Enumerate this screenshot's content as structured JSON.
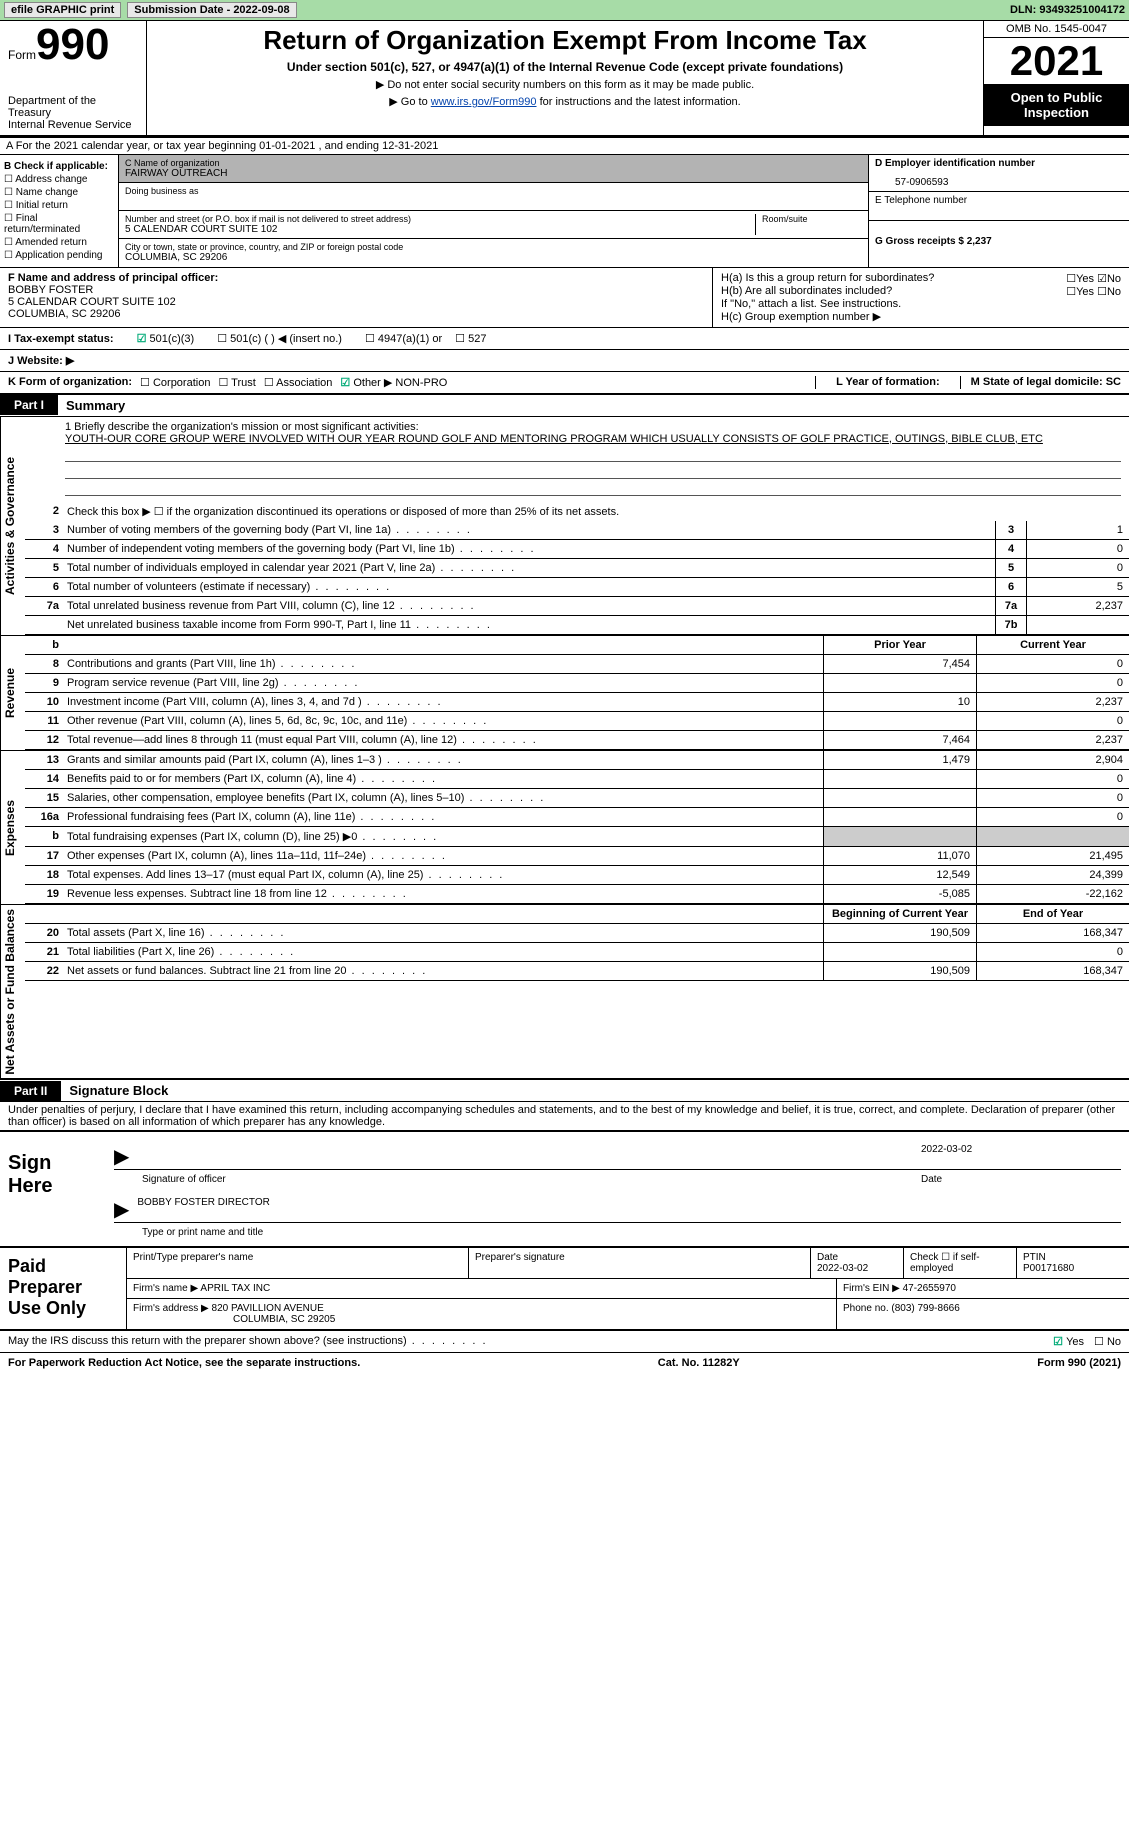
{
  "topbar": {
    "efile": "efile GRAPHIC print",
    "submission": "Submission Date - 2022-09-08",
    "dln": "DLN: 93493251004172"
  },
  "header": {
    "form_label": "Form",
    "form_number": "990",
    "title": "Return of Organization Exempt From Income Tax",
    "sub1": "Under section 501(c), 527, or 4947(a)(1) of the Internal Revenue Code (except private foundations)",
    "sub2": "▶ Do not enter social security numbers on this form as it may be made public.",
    "sub3_prefix": "▶ Go to ",
    "sub3_link": "www.irs.gov/Form990",
    "sub3_suffix": " for instructions and the latest information.",
    "omb": "OMB No. 1545-0047",
    "year": "2021",
    "inspect": "Open to Public Inspection",
    "dept1": "Department of the Treasury",
    "dept2": "Internal Revenue Service"
  },
  "row_a": "A For the 2021 calendar year, or tax year beginning 01-01-2021    , and ending 12-31-2021",
  "box_b": {
    "label": "B Check if applicable:",
    "items": [
      "Address change",
      "Name change",
      "Initial return",
      "Final return/terminated",
      "Amended return",
      "Application pending"
    ]
  },
  "box_c": {
    "name_label": "C Name of organization",
    "name": "FAIRWAY OUTREACH",
    "dba_label": "Doing business as",
    "addr_label": "Number and street (or P.O. box if mail is not delivered to street address)",
    "room_label": "Room/suite",
    "addr": "5 CALENDAR COURT SUITE 102",
    "city_label": "City or town, state or province, country, and ZIP or foreign postal code",
    "city": "COLUMBIA, SC  29206"
  },
  "box_d": {
    "label": "D Employer identification number",
    "value": "57-0906593",
    "e_label": "E Telephone number",
    "g_label": "G Gross receipts $ 2,237"
  },
  "box_f": {
    "label": "F  Name and address of principal officer:",
    "name": "BOBBY FOSTER",
    "addr1": "5 CALENDAR COURT SUITE 102",
    "addr2": "COLUMBIA, SC  29206"
  },
  "box_h": {
    "ha": "H(a)  Is this a group return for subordinates?",
    "hb": "H(b)  Are all subordinates included?",
    "hb_note": "If \"No,\" attach a list. See instructions.",
    "hc": "H(c)  Group exemption number ▶",
    "yes": "Yes",
    "no": "No"
  },
  "status": {
    "i_label": "I    Tax-exempt status:",
    "opt1": "501(c)(3)",
    "opt2": "501(c) (  ) ◀ (insert no.)",
    "opt3": "4947(a)(1) or",
    "opt4": "527",
    "j_label": "J   Website: ▶"
  },
  "klm": {
    "k": "K Form of organization:",
    "corp": "Corporation",
    "trust": "Trust",
    "assoc": "Association",
    "other": "Other ▶ NON-PRO",
    "l": "L Year of formation:",
    "m": "M State of legal domicile: SC"
  },
  "part1": {
    "tab": "Part I",
    "title": "Summary",
    "mission_label": "1   Briefly describe the organization's mission or most significant activities:",
    "mission": "YOUTH-OUR CORE GROUP WERE INVOLVED WITH OUR YEAR ROUND GOLF AND MENTORING PROGRAM WHICH USUALLY CONSISTS OF GOLF PRACTICE, OUTINGS, BIBLE CLUB, ETC",
    "line2": "Check this box ▶ ☐ if the organization discontinued its operations or disposed of more than 25% of its net assets.",
    "vlabel_ag": "Activities & Governance",
    "vlabel_rev": "Revenue",
    "vlabel_exp": "Expenses",
    "vlabel_na": "Net Assets or Fund Balances",
    "rows_gov": [
      {
        "n": "3",
        "desc": "Number of voting members of the governing body (Part VI, line 1a)",
        "box": "3",
        "val": "1"
      },
      {
        "n": "4",
        "desc": "Number of independent voting members of the governing body (Part VI, line 1b)",
        "box": "4",
        "val": "0"
      },
      {
        "n": "5",
        "desc": "Total number of individuals employed in calendar year 2021 (Part V, line 2a)",
        "box": "5",
        "val": "0"
      },
      {
        "n": "6",
        "desc": "Total number of volunteers (estimate if necessary)",
        "box": "6",
        "val": "5"
      },
      {
        "n": "7a",
        "desc": "Total unrelated business revenue from Part VIII, column (C), line 12",
        "box": "7a",
        "val": "2,237"
      },
      {
        "n": "",
        "desc": "Net unrelated business taxable income from Form 990-T, Part I, line 11",
        "box": "7b",
        "val": ""
      }
    ],
    "col_prior": "Prior Year",
    "col_current": "Current Year",
    "rows_rev": [
      {
        "n": "8",
        "desc": "Contributions and grants (Part VIII, line 1h)",
        "prior": "7,454",
        "curr": "0"
      },
      {
        "n": "9",
        "desc": "Program service revenue (Part VIII, line 2g)",
        "prior": "",
        "curr": "0"
      },
      {
        "n": "10",
        "desc": "Investment income (Part VIII, column (A), lines 3, 4, and 7d )",
        "prior": "10",
        "curr": "2,237"
      },
      {
        "n": "11",
        "desc": "Other revenue (Part VIII, column (A), lines 5, 6d, 8c, 9c, 10c, and 11e)",
        "prior": "",
        "curr": "0"
      },
      {
        "n": "12",
        "desc": "Total revenue—add lines 8 through 11 (must equal Part VIII, column (A), line 12)",
        "prior": "7,464",
        "curr": "2,237"
      }
    ],
    "rows_exp": [
      {
        "n": "13",
        "desc": "Grants and similar amounts paid (Part IX, column (A), lines 1–3 )",
        "prior": "1,479",
        "curr": "2,904"
      },
      {
        "n": "14",
        "desc": "Benefits paid to or for members (Part IX, column (A), line 4)",
        "prior": "",
        "curr": "0"
      },
      {
        "n": "15",
        "desc": "Salaries, other compensation, employee benefits (Part IX, column (A), lines 5–10)",
        "prior": "",
        "curr": "0"
      },
      {
        "n": "16a",
        "desc": "Professional fundraising fees (Part IX, column (A), line 11e)",
        "prior": "",
        "curr": "0"
      },
      {
        "n": "b",
        "desc": "Total fundraising expenses (Part IX, column (D), line 25) ▶0",
        "prior": "grey",
        "curr": "grey"
      },
      {
        "n": "17",
        "desc": "Other expenses (Part IX, column (A), lines 11a–11d, 11f–24e)",
        "prior": "11,070",
        "curr": "21,495"
      },
      {
        "n": "18",
        "desc": "Total expenses. Add lines 13–17 (must equal Part IX, column (A), line 25)",
        "prior": "12,549",
        "curr": "24,399"
      },
      {
        "n": "19",
        "desc": "Revenue less expenses. Subtract line 18 from line 12",
        "prior": "-5,085",
        "curr": "-22,162"
      }
    ],
    "col_beg": "Beginning of Current Year",
    "col_end": "End of Year",
    "rows_na": [
      {
        "n": "20",
        "desc": "Total assets (Part X, line 16)",
        "prior": "190,509",
        "curr": "168,347"
      },
      {
        "n": "21",
        "desc": "Total liabilities (Part X, line 26)",
        "prior": "",
        "curr": "0"
      },
      {
        "n": "22",
        "desc": "Net assets or fund balances. Subtract line 21 from line 20",
        "prior": "190,509",
        "curr": "168,347"
      }
    ]
  },
  "part2": {
    "tab": "Part II",
    "title": "Signature Block",
    "penalties": "Under penalties of perjury, I declare that I have examined this return, including accompanying schedules and statements, and to the best of my knowledge and belief, it is true, correct, and complete. Declaration of preparer (other than officer) is based on all information of which preparer has any knowledge.",
    "sign_here": "Sign Here",
    "sig_officer": "Signature of officer",
    "sig_date": "2022-03-02",
    "date_label": "Date",
    "sig_name": "BOBBY FOSTER  DIRECTOR",
    "type_label": "Type or print name and title",
    "paid_label": "Paid Preparer Use Only",
    "prep_name_label": "Print/Type preparer's name",
    "prep_sig_label": "Preparer's signature",
    "prep_date": "Date\n2022-03-02",
    "prep_check": "Check ☐ if self-employed",
    "ptin_label": "PTIN",
    "ptin": "P00171680",
    "firm_name_label": "Firm's name    ▶",
    "firm_name": "APRIL TAX INC",
    "firm_ein": "Firm's EIN ▶ 47-2655970",
    "firm_addr_label": "Firm's address ▶",
    "firm_addr1": "820 PAVILLION AVENUE",
    "firm_addr2": "COLUMBIA, SC  29205",
    "phone": "Phone no. (803) 799-8666"
  },
  "footer": {
    "discuss": "May the IRS discuss this return with the preparer shown above? (see instructions)",
    "yes": "Yes",
    "no": "No",
    "paperwork": "For Paperwork Reduction Act Notice, see the separate instructions.",
    "cat": "Cat. No. 11282Y",
    "form": "Form 990 (2021)"
  }
}
